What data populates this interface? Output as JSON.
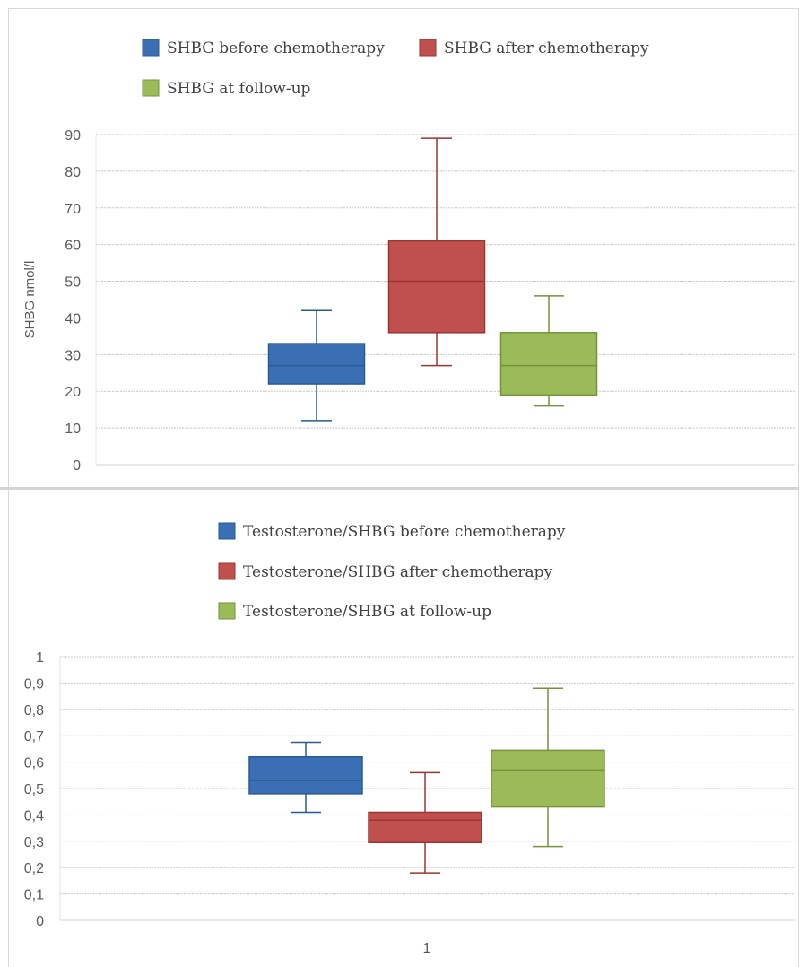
{
  "charts": [
    {
      "legend": [
        {
          "label": "SHBG before chemotherapy",
          "color": "#3A6FB3",
          "stroke": "#2A5A96"
        },
        {
          "label": "SHBG after chemotherapy",
          "color": "#C0504D",
          "stroke": "#9C3431"
        },
        {
          "label": "SHBG at follow-up",
          "color": "#9BBB59",
          "stroke": "#76923C"
        }
      ],
      "ylabel": "SHBG nmol/l",
      "ytick_labels": [
        "0",
        "10",
        "20",
        "30",
        "40",
        "50",
        "60",
        "70",
        "80",
        "90"
      ],
      "xtick_labels": []
    },
    {
      "legend": [
        {
          "label": "Testosterone/SHBG before chemotherapy",
          "color": "#3A6FB3",
          "stroke": "#2A5A96"
        },
        {
          "label": "Testosterone/SHBG after chemotherapy",
          "color": "#C0504D",
          "stroke": "#9C3431"
        },
        {
          "label": "Testosterone/SHBG at follow-up",
          "color": "#9BBB59",
          "stroke": "#76923C"
        }
      ],
      "ylabel": "",
      "ytick_labels": [
        "0",
        "0,1",
        "0,2",
        "0,3",
        "0,4",
        "0,5",
        "0,6",
        "0,7",
        "0,8",
        "0,9",
        "1"
      ],
      "xtick_labels": [
        "1"
      ]
    }
  ],
  "chart_data": [
    {
      "type": "box",
      "ylim": [
        0,
        90
      ],
      "grid": true,
      "legend_position": "top",
      "series": [
        {
          "name": "SHBG before chemotherapy",
          "min": 12,
          "q1": 22,
          "median": 27,
          "q3": 33,
          "max": 42
        },
        {
          "name": "SHBG after chemotherapy",
          "min": 27,
          "q1": 36,
          "median": 50,
          "q3": 61,
          "max": 89
        },
        {
          "name": "SHBG at follow-up",
          "min": 16,
          "q1": 19,
          "median": 27,
          "q3": 36,
          "max": 46
        }
      ]
    },
    {
      "type": "box",
      "ylim": [
        0,
        1
      ],
      "grid": true,
      "legend_position": "top",
      "categories": [
        "1"
      ],
      "series": [
        {
          "name": "Testosterone/SHBG before chemotherapy",
          "min": 0.41,
          "q1": 0.48,
          "median": 0.53,
          "q3": 0.62,
          "max": 0.675
        },
        {
          "name": "Testosterone/SHBG after chemotherapy",
          "min": 0.18,
          "q1": 0.295,
          "median": 0.38,
          "q3": 0.41,
          "max": 0.56
        },
        {
          "name": "Testosterone/SHBG at follow-up",
          "min": 0.28,
          "q1": 0.43,
          "median": 0.57,
          "q3": 0.645,
          "max": 0.88
        }
      ]
    }
  ]
}
